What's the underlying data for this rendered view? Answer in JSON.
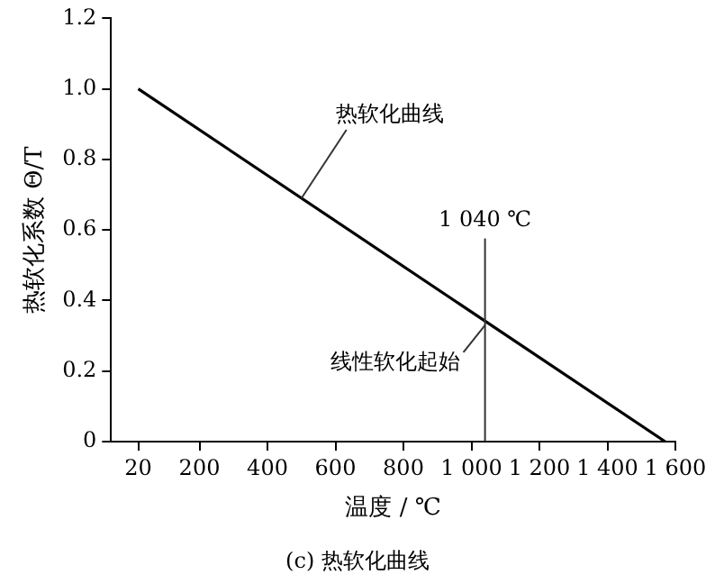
{
  "chart_data": {
    "type": "line",
    "xlabel": "温度 / ℃",
    "ylabel": "热软化系数 Θ/T",
    "x": [
      20,
      1570
    ],
    "series": [
      {
        "color": "#000000",
        "values": [
          1.0,
          0
        ]
      }
    ],
    "xlim": [
      -60,
      1600
    ],
    "xticks": [
      20,
      200,
      400,
      600,
      800,
      {
        "value": 1000,
        "label": "1 000"
      },
      {
        "value": 1200,
        "label": "1 200"
      },
      {
        "value": 1400,
        "label": "1 400"
      },
      {
        "value": 1600,
        "label": "1 600"
      }
    ],
    "ylim": [
      0,
      1.2
    ],
    "yticks": [
      0,
      0.2,
      0.4,
      0.6,
      0.8,
      {
        "value": 1.0,
        "label": "1.0"
      },
      {
        "value": 1.2,
        "label": "1.2"
      }
    ],
    "ref_lines": [
      {
        "axis": "x",
        "value": 1040,
        "label": "1 040 ℃",
        "color": "#333333"
      }
    ],
    "annotations": [
      {
        "text": "热软化曲线",
        "x": 500,
        "y": 0.69
      },
      {
        "text": "线性软化起始",
        "x": 1040,
        "y": 0.33
      },
      "(c) 热软化曲线"
    ],
    "grid": false,
    "legend": false,
    "marker": "none",
    "line_style": "solid"
  }
}
